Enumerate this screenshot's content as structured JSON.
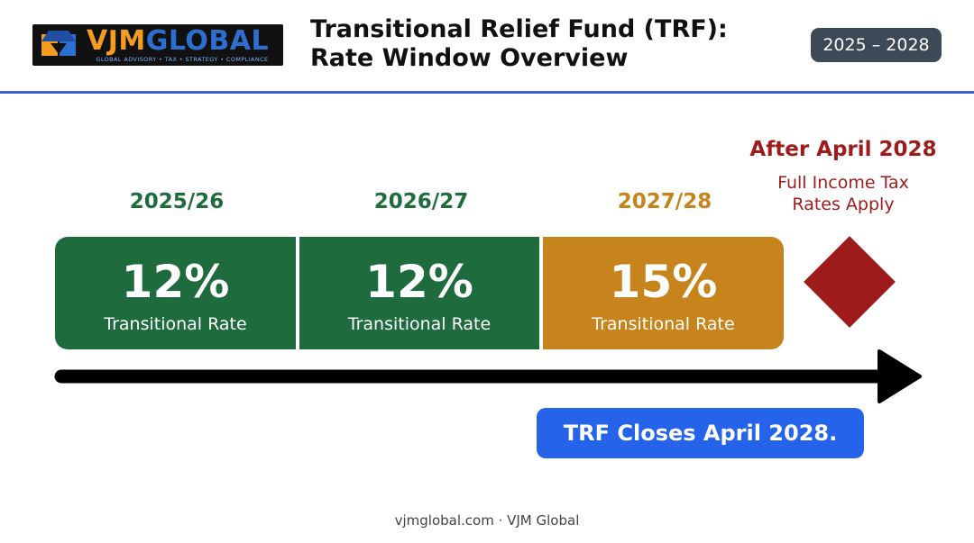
{
  "logo": {
    "name_part1": "VJM",
    "name_part2": "GLOBAL",
    "tagline": "GLOBAL ADVISORY • TAX • STRATEGY • COMPLIANCE"
  },
  "header": {
    "title_line1": "Transitional Relief Fund (TRF):",
    "title_line2": "Rate Window Overview",
    "range": "2025 – 2028"
  },
  "periods": [
    {
      "year": "2025/26",
      "rate": "12%",
      "label": "Transitional Rate",
      "color": "#1e6b3e"
    },
    {
      "year": "2026/27",
      "rate": "12%",
      "label": "Transitional Rate",
      "color": "#1e6b3e"
    },
    {
      "year": "2027/28",
      "rate": "15%",
      "label": "Transitional Rate",
      "color": "#c8841c"
    }
  ],
  "after": {
    "title": "After April 2028",
    "line1": "Full Income Tax",
    "line2": "Rates Apply",
    "color": "#9e1b1b",
    "icon": "diamond-icon"
  },
  "closing_note": "TRF Closes April 2028.",
  "footer": "vjmglobal.com · VJM Global",
  "colors": {
    "accent_blue": "#3b63d1",
    "badge_dark": "#3c4a57",
    "note_blue": "#2563eb"
  }
}
